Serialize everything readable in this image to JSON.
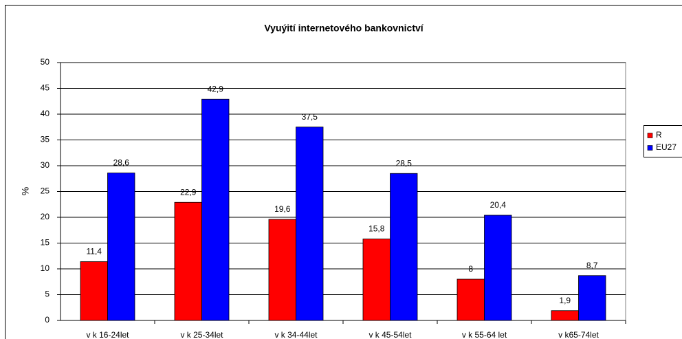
{
  "chart_data": {
    "type": "bar",
    "title": "Vyuýití internetového bankovnictví",
    "y_label": "%",
    "categories": [
      "v  k 16-24let",
      "v  k 25-34let",
      "v  k 34-44let",
      "v  k 45-54let",
      "v  k 55-64 let",
      "v  k65-74let"
    ],
    "series": [
      {
        "name": "R",
        "color": "#ff0000",
        "values": [
          11.4,
          22.9,
          19.6,
          15.8,
          8,
          1.9
        ],
        "value_labels": [
          "11,4",
          "22,9",
          "19,6",
          "15,8",
          "8",
          "1,9"
        ]
      },
      {
        "name": "EU27",
        "color": "#0000ff",
        "values": [
          28.6,
          42.9,
          37.5,
          28.5,
          20.4,
          8.7
        ],
        "value_labels": [
          "28,6",
          "42,9",
          "37,5",
          "28,5",
          "20,4",
          "8,7"
        ]
      }
    ],
    "ylim": [
      0,
      50
    ],
    "yticks": [
      0,
      5,
      10,
      15,
      20,
      25,
      30,
      35,
      40,
      45,
      50
    ],
    "grid": true,
    "legend": "right"
  }
}
